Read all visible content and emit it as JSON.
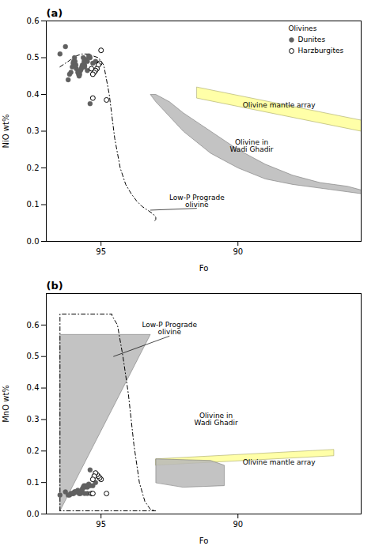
{
  "chart_data": [
    {
      "type": "scatter",
      "title": "(a)",
      "xlabel": "Fo",
      "ylabel": "NiO wt%",
      "xlim": [
        97.0,
        85.5
      ],
      "xticks": [
        95,
        90
      ],
      "ylim": [
        0.0,
        0.6
      ],
      "yticks": [
        {
          "value": 0.0,
          "label": "0.0"
        },
        0.1,
        0.2,
        0.3,
        0.4,
        0.5,
        0.6
      ],
      "legend": "upper right",
      "legend_title": "Olivines",
      "series": [
        {
          "type": "polygon",
          "color": "#b8b8b8",
          "x": [
            85.5,
            86.0,
            87.0,
            88.0,
            89.0,
            90.0,
            91.0,
            92.0,
            92.5,
            93.0,
            93.2,
            93.0,
            92.5,
            92.0,
            91.5,
            91.0,
            90.0,
            89.0,
            88.0,
            87.0,
            86.0,
            85.5
          ],
          "y": [
            0.14,
            0.15,
            0.16,
            0.18,
            0.21,
            0.25,
            0.3,
            0.35,
            0.38,
            0.4,
            0.4,
            0.38,
            0.34,
            0.3,
            0.27,
            0.24,
            0.2,
            0.17,
            0.155,
            0.145,
            0.135,
            0.13
          ]
        },
        {
          "type": "polygon",
          "color": "#ffff99",
          "x": [
            91.5,
            85.5,
            85.5,
            91.5
          ],
          "y": [
            0.42,
            0.33,
            0.3,
            0.39
          ]
        },
        {
          "type": "line",
          "color": "black",
          "line_style": "dashdot",
          "x": [
            96.5,
            96.3,
            96.1,
            95.9,
            95.7,
            95.5,
            95.3,
            95.1,
            94.9,
            94.7,
            94.5,
            94.3,
            94.1,
            93.9,
            93.7,
            93.5,
            93.3,
            93.1,
            93.0,
            93.0,
            93.02,
            93.05
          ],
          "y": [
            0.475,
            0.485,
            0.495,
            0.505,
            0.51,
            0.51,
            0.505,
            0.5,
            0.48,
            0.4,
            0.28,
            0.2,
            0.155,
            0.13,
            0.11,
            0.095,
            0.085,
            0.075,
            0.065,
            0.06,
            0.058,
            0.055
          ]
        },
        {
          "name": "Dunites",
          "type": "scatter",
          "color": "#606060",
          "marker": "circle",
          "x": [
            96.3,
            96.5,
            95.2,
            95.3,
            95.4,
            95.45,
            95.5,
            95.55,
            95.6,
            95.62,
            95.65,
            95.68,
            95.7,
            95.72,
            95.75,
            95.78,
            95.8,
            95.82,
            95.85,
            95.9,
            95.92,
            95.95,
            95.97,
            96.0,
            96.02,
            96.05,
            96.1,
            96.15,
            96.2,
            95.4,
            95.5,
            95.6
          ],
          "y": [
            0.53,
            0.51,
            0.49,
            0.485,
            0.5,
            0.505,
            0.49,
            0.495,
            0.48,
            0.49,
            0.5,
            0.48,
            0.475,
            0.47,
            0.465,
            0.455,
            0.45,
            0.455,
            0.46,
            0.47,
            0.48,
            0.49,
            0.5,
            0.49,
            0.485,
            0.475,
            0.46,
            0.455,
            0.44,
            0.375,
            0.465,
            0.475
          ]
        },
        {
          "name": "Harzburgites",
          "type": "scatter",
          "color": "black",
          "marker": "open_circle",
          "x": [
            95.0,
            95.05,
            95.1,
            95.15,
            95.2,
            95.25,
            95.3,
            95.35,
            95.3,
            94.8
          ],
          "y": [
            0.52,
            0.485,
            0.48,
            0.47,
            0.465,
            0.46,
            0.455,
            0.47,
            0.39,
            0.385
          ]
        }
      ],
      "annotations": [
        {
          "text": "Olivine mantle array",
          "x": 88.5,
          "y": 0.37
        },
        {
          "text": "Low-P Prograde\nolivine",
          "x": 91.5,
          "y": 0.09,
          "arrow_to": [
            93.2,
            0.085
          ]
        },
        {
          "text": "Olivine in\nWadi Ghadir",
          "x": 89.5,
          "y": 0.26
        }
      ]
    },
    {
      "type": "scatter",
      "title": "(b)",
      "xlabel": "Fo",
      "ylabel": "MnO wt%",
      "xlim": [
        97.0,
        85.5
      ],
      "xticks": [
        95,
        90
      ],
      "ylim": [
        0.0,
        0.7
      ],
      "yticks": [
        {
          "value": 0.0,
          "label": "0.0"
        },
        0.1,
        0.2,
        0.3,
        0.4,
        0.5,
        0.6
      ],
      "series": [
        {
          "type": "polygon",
          "color": "#b8b8b8",
          "x": [
            96.5,
            93.2,
            96.5
          ],
          "y": [
            0.01,
            0.57,
            0.57
          ]
        },
        {
          "type": "polygon",
          "color": "#ffff99",
          "x": [
            93.0,
            86.5,
            86.5,
            93.0
          ],
          "y": [
            0.175,
            0.205,
            0.185,
            0.155
          ]
        },
        {
          "type": "polygon",
          "color": "#b8b8b8",
          "x": [
            93.0,
            93.0,
            91.0,
            90.5,
            90.5,
            92.0
          ],
          "y": [
            0.1,
            0.175,
            0.17,
            0.155,
            0.09,
            0.085
          ]
        },
        {
          "type": "line",
          "color": "black",
          "line_style": "dashdot",
          "x": [
            96.5,
            96.5,
            94.6,
            94.6,
            94.4,
            94.2,
            94.0,
            93.8,
            93.6,
            93.4,
            93.2,
            93.0,
            93.0,
            96.5
          ],
          "y": [
            0.01,
            0.635,
            0.635,
            0.63,
            0.6,
            0.5,
            0.38,
            0.22,
            0.1,
            0.04,
            0.015,
            0.01,
            0.01,
            0.01
          ]
        },
        {
          "type": "scatter",
          "color": "#606060",
          "marker": "circle",
          "x": [
            96.3,
            96.5,
            95.2,
            95.3,
            95.4,
            95.45,
            95.5,
            95.55,
            95.6,
            95.62,
            95.65,
            95.68,
            95.7,
            95.72,
            95.75,
            95.78,
            95.8,
            95.82,
            95.85,
            95.9,
            95.92,
            95.95,
            95.97,
            96.0,
            96.02,
            96.05,
            96.1,
            96.15,
            96.2,
            95.4,
            95.5,
            95.6
          ],
          "y": [
            0.07,
            0.06,
            0.1,
            0.09,
            0.09,
            0.095,
            0.085,
            0.09,
            0.085,
            0.09,
            0.085,
            0.08,
            0.075,
            0.07,
            0.065,
            0.065,
            0.065,
            0.07,
            0.075,
            0.07,
            0.07,
            0.07,
            0.07,
            0.065,
            0.065,
            0.065,
            0.065,
            0.06,
            0.06,
            0.14,
            0.065,
            0.065
          ]
        },
        {
          "type": "scatter",
          "color": "black",
          "marker": "open_circle",
          "x": [
            95.0,
            95.05,
            95.1,
            95.15,
            95.2,
            95.25,
            95.3,
            95.35,
            95.3,
            94.8
          ],
          "y": [
            0.11,
            0.115,
            0.12,
            0.125,
            0.13,
            0.12,
            0.11,
            0.065,
            0.065,
            0.065
          ]
        }
      ],
      "annotations": [
        {
          "text": "Olivine mantle array",
          "x": 88.5,
          "y": 0.165
        },
        {
          "text": "Low-P Prograde\nolivine",
          "x": 92.5,
          "y": 0.565,
          "arrow_to": [
            94.55,
            0.5
          ]
        },
        {
          "text": "Olivine in\nWadi Ghadir",
          "x": 90.8,
          "y": 0.3
        }
      ]
    }
  ]
}
